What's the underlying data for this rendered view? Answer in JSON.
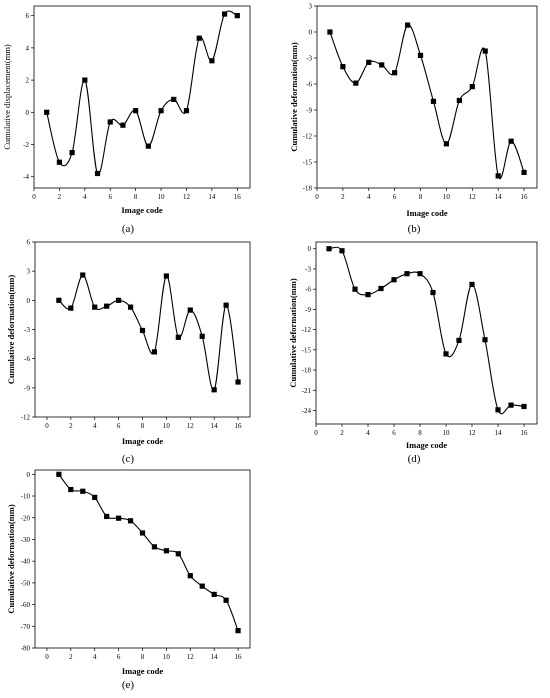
{
  "chart_data": [
    {
      "type": "line",
      "panel_label": "(a)",
      "xlabel": "Image code",
      "ylabel": "Cumulative displacement(mm)",
      "xlim": [
        0,
        17
      ],
      "ylim": [
        -4.7,
        6.6
      ],
      "xticks": [
        0,
        2,
        4,
        6,
        8,
        10,
        12,
        14,
        16
      ],
      "yticks": [
        -4,
        -2,
        0,
        2,
        4,
        6
      ],
      "x": [
        1,
        2,
        3,
        4,
        5,
        6,
        7,
        8,
        9,
        10,
        11,
        12,
        13,
        14,
        15,
        16
      ],
      "values": [
        0.0,
        -3.1,
        -2.5,
        2.0,
        -3.8,
        -0.6,
        -0.8,
        0.1,
        -2.1,
        0.1,
        0.8,
        0.1,
        4.6,
        3.2,
        6.1,
        6.0
      ]
    },
    {
      "type": "line",
      "panel_label": "(b)",
      "xlabel": "Image code",
      "ylabel": "Cumulative deformation(mm)",
      "xlim": [
        0,
        17
      ],
      "ylim": [
        -18,
        3
      ],
      "xticks": [
        0,
        2,
        4,
        6,
        8,
        10,
        12,
        14,
        16
      ],
      "yticks": [
        -18,
        -15,
        -12,
        -9,
        -6,
        -3,
        0,
        3
      ],
      "x": [
        1,
        2,
        3,
        4,
        5,
        6,
        7,
        8,
        9,
        10,
        11,
        12,
        13,
        14,
        15,
        16
      ],
      "values": [
        0.0,
        -4.0,
        -5.9,
        -3.5,
        -3.8,
        -4.7,
        0.8,
        -2.7,
        -8.0,
        -12.9,
        -7.9,
        -6.3,
        -2.2,
        -16.6,
        -12.6,
        -16.2
      ]
    },
    {
      "type": "line",
      "panel_label": "(c)",
      "xlabel": "Image code",
      "ylabel": "Cumulative deformation(mm)",
      "xlim": [
        -1,
        17
      ],
      "ylim": [
        -12,
        6
      ],
      "xticks": [
        0,
        2,
        4,
        6,
        8,
        10,
        12,
        14,
        16
      ],
      "yticks": [
        -12,
        -9,
        -6,
        -3,
        0,
        3,
        6
      ],
      "x": [
        1,
        2,
        3,
        4,
        5,
        6,
        7,
        8,
        9,
        10,
        11,
        12,
        13,
        14,
        15,
        16
      ],
      "values": [
        0.0,
        -0.8,
        2.6,
        -0.7,
        -0.6,
        0.0,
        -0.7,
        -3.1,
        -5.3,
        2.5,
        -3.8,
        -1.0,
        -3.7,
        -9.2,
        -0.5,
        -8.4
      ]
    },
    {
      "type": "line",
      "panel_label": "(d)",
      "xlabel": "Image code",
      "ylabel": "Cumulative deformation(mm)",
      "xlim": [
        0,
        17
      ],
      "ylim": [
        -26,
        1
      ],
      "xticks": [
        0,
        2,
        4,
        6,
        8,
        10,
        12,
        14,
        16
      ],
      "yticks": [
        -24,
        -21,
        -18,
        -15,
        -12,
        -9,
        -6,
        -3,
        0
      ],
      "x": [
        1,
        2,
        3,
        4,
        5,
        6,
        7,
        8,
        9,
        10,
        11,
        12,
        13,
        14,
        15,
        16
      ],
      "values": [
        0.0,
        -0.3,
        -6.0,
        -6.8,
        -5.9,
        -4.6,
        -3.7,
        -3.7,
        -6.5,
        -15.6,
        -13.6,
        -5.3,
        -13.5,
        -23.9,
        -23.2,
        -23.4
      ]
    },
    {
      "type": "line",
      "panel_label": "(e)",
      "xlabel": "Image code",
      "ylabel": "Cumulative deformation(mm)",
      "xlim": [
        -1,
        17
      ],
      "ylim": [
        -80,
        2
      ],
      "xticks": [
        0,
        2,
        4,
        6,
        8,
        10,
        12,
        14,
        16
      ],
      "yticks": [
        -80,
        -70,
        -60,
        -50,
        -40,
        -30,
        -20,
        -10,
        0
      ],
      "x": [
        1,
        2,
        3,
        4,
        5,
        6,
        7,
        8,
        9,
        10,
        11,
        12,
        13,
        14,
        15,
        16
      ],
      "values": [
        0.0,
        -7.0,
        -7.8,
        -10.6,
        -19.4,
        -20.2,
        -21.4,
        -27.0,
        -33.4,
        -35.2,
        -36.6,
        -46.7,
        -51.5,
        -55.3,
        -58.0,
        -72.0
      ]
    }
  ]
}
